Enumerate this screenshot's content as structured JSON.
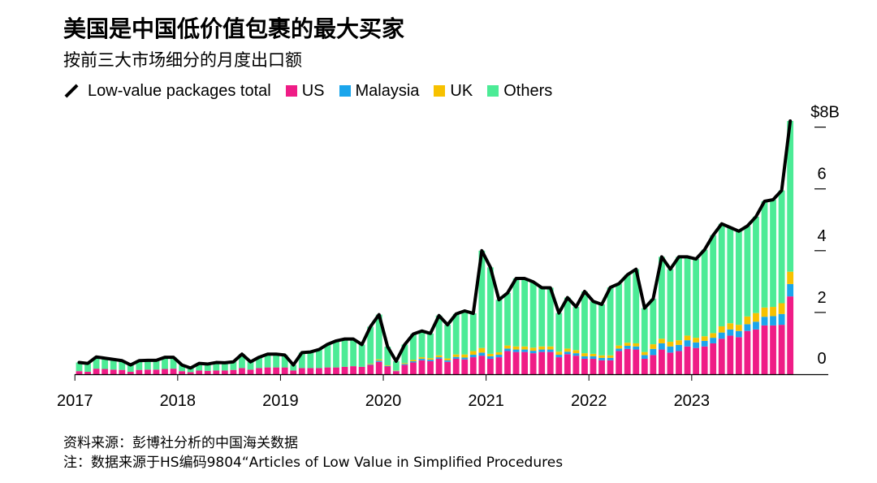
{
  "header": {
    "title": "美国是中国低价值包裹的最大买家",
    "subtitle": "按前三大市场细分的月度出口额"
  },
  "legend": {
    "total_label": "Low-value packages total",
    "items": [
      {
        "label": "US",
        "color": "#ef1c86"
      },
      {
        "label": "Malaysia",
        "color": "#1aa5ec"
      },
      {
        "label": "UK",
        "color": "#f7c100"
      },
      {
        "label": "Others",
        "color": "#4ceb96"
      }
    ]
  },
  "footer": {
    "source": "资料来源：彭博社分析的中国海关数据",
    "note": "注：数据来源于HS编码9804“Articles of Low Value in Simplified Procedures"
  },
  "chart_data": {
    "type": "bar",
    "stacked": true,
    "x": [
      "2017-01",
      "2017-02",
      "2017-03",
      "2017-04",
      "2017-05",
      "2017-06",
      "2017-07",
      "2017-08",
      "2017-09",
      "2017-10",
      "2017-11",
      "2017-12",
      "2018-01",
      "2018-02",
      "2018-03",
      "2018-04",
      "2018-05",
      "2018-06",
      "2018-07",
      "2018-08",
      "2018-09",
      "2018-10",
      "2018-11",
      "2018-12",
      "2019-01",
      "2019-02",
      "2019-03",
      "2019-04",
      "2019-05",
      "2019-06",
      "2019-07",
      "2019-08",
      "2019-09",
      "2019-10",
      "2019-11",
      "2019-12",
      "2020-01",
      "2020-02",
      "2020-03",
      "2020-04",
      "2020-05",
      "2020-06",
      "2020-07",
      "2020-08",
      "2020-09",
      "2020-10",
      "2020-11",
      "2020-12",
      "2021-01",
      "2021-02",
      "2021-03",
      "2021-04",
      "2021-05",
      "2021-06",
      "2021-07",
      "2021-08",
      "2021-09",
      "2021-10",
      "2021-11",
      "2021-12",
      "2022-01",
      "2022-02",
      "2022-03",
      "2022-04",
      "2022-05",
      "2022-06",
      "2022-07",
      "2022-08",
      "2022-09",
      "2022-10",
      "2022-11",
      "2022-12",
      "2023-01",
      "2023-02",
      "2023-03",
      "2023-04",
      "2023-05",
      "2023-06",
      "2023-07",
      "2023-08",
      "2023-09",
      "2023-10",
      "2023-11",
      "2023-12"
    ],
    "x_tick_labels": [
      "2017",
      "2018",
      "2019",
      "2020",
      "2021",
      "2022",
      "2023"
    ],
    "series": [
      {
        "name": "US",
        "color": "#ef1c86",
        "values": [
          0.1,
          0.08,
          0.18,
          0.17,
          0.15,
          0.14,
          0.08,
          0.14,
          0.15,
          0.15,
          0.17,
          0.18,
          0.1,
          0.07,
          0.12,
          0.11,
          0.12,
          0.12,
          0.14,
          0.2,
          0.15,
          0.2,
          0.22,
          0.22,
          0.22,
          0.12,
          0.2,
          0.2,
          0.2,
          0.22,
          0.22,
          0.24,
          0.26,
          0.24,
          0.3,
          0.4,
          0.25,
          0.1,
          0.3,
          0.38,
          0.45,
          0.42,
          0.5,
          0.4,
          0.5,
          0.48,
          0.55,
          0.6,
          0.5,
          0.55,
          0.75,
          0.72,
          0.72,
          0.68,
          0.72,
          0.72,
          0.55,
          0.65,
          0.6,
          0.5,
          0.5,
          0.45,
          0.45,
          0.75,
          0.82,
          0.8,
          0.5,
          0.62,
          0.8,
          0.7,
          0.75,
          0.9,
          0.85,
          0.9,
          1.0,
          1.15,
          1.25,
          1.2,
          1.4,
          1.45,
          1.58,
          1.58,
          1.6,
          2.52
        ]
      },
      {
        "name": "Malaysia",
        "color": "#1aa5ec",
        "values": [
          0,
          0,
          0,
          0,
          0,
          0,
          0,
          0,
          0,
          0,
          0,
          0,
          0,
          0,
          0,
          0,
          0,
          0,
          0,
          0,
          0,
          0,
          0,
          0,
          0,
          0,
          0,
          0,
          0,
          0,
          0,
          0,
          0,
          0,
          0.02,
          0.04,
          0.02,
          0.01,
          0.03,
          0.04,
          0.05,
          0.05,
          0.05,
          0.05,
          0.06,
          0.06,
          0.08,
          0.1,
          0.08,
          0.08,
          0.08,
          0.08,
          0.08,
          0.08,
          0.08,
          0.08,
          0.08,
          0.08,
          0.08,
          0.08,
          0.08,
          0.08,
          0.08,
          0.08,
          0.1,
          0.1,
          0.12,
          0.2,
          0.2,
          0.2,
          0.2,
          0.2,
          0.18,
          0.18,
          0.18,
          0.2,
          0.2,
          0.2,
          0.22,
          0.25,
          0.28,
          0.3,
          0.35,
          0.4
        ]
      },
      {
        "name": "UK",
        "color": "#f7c100",
        "values": [
          0,
          0,
          0,
          0,
          0,
          0,
          0,
          0,
          0,
          0,
          0,
          0,
          0,
          0,
          0,
          0,
          0,
          0,
          0,
          0,
          0,
          0,
          0,
          0,
          0,
          0,
          0,
          0,
          0,
          0,
          0,
          0,
          0,
          0,
          0.02,
          0.04,
          0.02,
          0.01,
          0.03,
          0.04,
          0.05,
          0.05,
          0.06,
          0.06,
          0.08,
          0.1,
          0.12,
          0.15,
          0.08,
          0.08,
          0.1,
          0.1,
          0.1,
          0.1,
          0.1,
          0.1,
          0.1,
          0.1,
          0.1,
          0.1,
          0.08,
          0.08,
          0.08,
          0.1,
          0.1,
          0.1,
          0.1,
          0.15,
          0.15,
          0.15,
          0.15,
          0.15,
          0.15,
          0.15,
          0.15,
          0.2,
          0.2,
          0.2,
          0.25,
          0.28,
          0.3,
          0.3,
          0.35,
          0.4
        ]
      },
      {
        "name": "Others",
        "color": "#4ceb96",
        "values": [
          0.28,
          0.27,
          0.38,
          0.35,
          0.33,
          0.3,
          0.22,
          0.3,
          0.3,
          0.3,
          0.38,
          0.37,
          0.2,
          0.13,
          0.23,
          0.22,
          0.26,
          0.25,
          0.26,
          0.45,
          0.25,
          0.35,
          0.43,
          0.43,
          0.4,
          0.18,
          0.5,
          0.52,
          0.6,
          0.75,
          0.86,
          0.9,
          0.88,
          0.72,
          1.2,
          1.45,
          0.6,
          0.3,
          0.6,
          0.84,
          0.85,
          0.8,
          1.29,
          1.09,
          1.31,
          1.41,
          1.22,
          3.15,
          2.8,
          1.7,
          1.7,
          2.2,
          2.2,
          2.13,
          1.9,
          1.9,
          1.25,
          1.65,
          1.4,
          2.0,
          1.7,
          1.65,
          2.2,
          2.0,
          2.2,
          2.4,
          1.42,
          1.47,
          2.65,
          2.35,
          2.7,
          2.55,
          2.55,
          2.8,
          3.17,
          3.32,
          3.1,
          3.03,
          2.93,
          3.12,
          3.44,
          3.47,
          3.65,
          4.88
        ]
      }
    ],
    "total": {
      "name": "Low-value packages total",
      "color": "#000000",
      "values": [
        0.38,
        0.35,
        0.56,
        0.52,
        0.48,
        0.44,
        0.3,
        0.44,
        0.45,
        0.45,
        0.55,
        0.55,
        0.3,
        0.2,
        0.35,
        0.33,
        0.38,
        0.37,
        0.4,
        0.65,
        0.4,
        0.55,
        0.65,
        0.65,
        0.62,
        0.3,
        0.7,
        0.72,
        0.8,
        0.97,
        1.08,
        1.14,
        1.14,
        0.96,
        1.54,
        1.93,
        0.89,
        0.42,
        0.96,
        1.3,
        1.4,
        1.32,
        1.9,
        1.6,
        1.95,
        2.05,
        1.97,
        4.0,
        3.46,
        2.41,
        2.63,
        3.1,
        3.1,
        2.99,
        2.8,
        2.8,
        1.98,
        2.48,
        2.18,
        2.68,
        2.36,
        2.26,
        2.81,
        2.93,
        3.22,
        3.4,
        2.14,
        2.44,
        3.8,
        3.4,
        3.8,
        3.8,
        3.73,
        4.03,
        4.5,
        4.87,
        4.75,
        4.63,
        4.8,
        5.1,
        5.6,
        5.65,
        5.95,
        8.2
      ]
    },
    "y_ticks": [
      0,
      2,
      4,
      6,
      8
    ],
    "y_tick_labels": [
      "0",
      "2",
      "4",
      "6",
      "$8B"
    ],
    "ylim": [
      0,
      8.4
    ],
    "grid": false,
    "legend_position": "top-left"
  }
}
